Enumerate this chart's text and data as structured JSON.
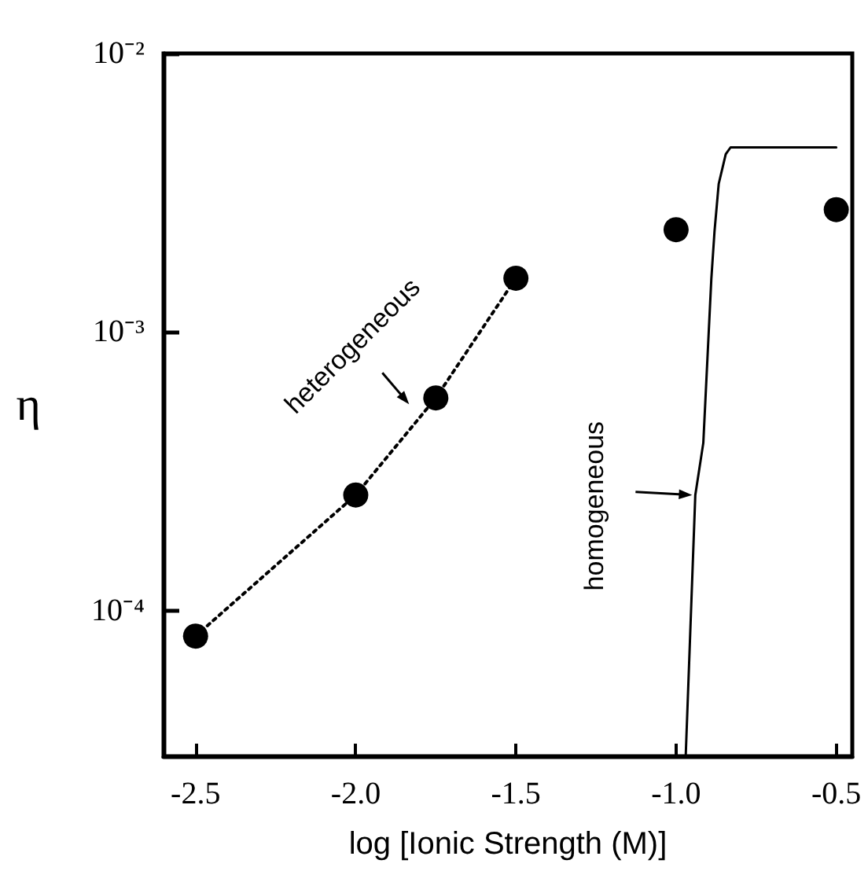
{
  "chart_data": {
    "type": "scatter",
    "xlabel": "log [Ionic Strength (M)]",
    "ylabel": "η",
    "log": "y",
    "grid": false,
    "xlim": [
      -2.6,
      -0.45
    ],
    "xticks": [
      -2.5,
      {
        "value": -2,
        "label": "-2.0"
      },
      -1.5,
      {
        "value": -1,
        "label": "-1.0"
      },
      -0.5
    ],
    "ylim": [
      3e-05,
      0.01
    ],
    "yticks": [
      {
        "value": 0.0001,
        "label": "10⁻⁴"
      },
      {
        "value": 0.001,
        "label": "10⁻³"
      },
      {
        "value": 0.01,
        "label": "10⁻²"
      }
    ],
    "series": [
      {
        "color": "#000000",
        "marker": "circle",
        "x": [
          -2.5,
          -2.0,
          -1.75,
          -1.5,
          -1.0,
          -0.5
        ],
        "values": [
          8.1e-05,
          0.00026,
          0.00058,
          0.00156,
          0.00233,
          0.00275
        ]
      },
      {
        "type": "line",
        "color": "#000000",
        "marker": "none",
        "line_style": "dotted",
        "x": [
          -2.5,
          -2.0,
          -1.75,
          -1.5
        ],
        "values": [
          8.1e-05,
          0.00026,
          0.00058,
          0.00156
        ]
      },
      {
        "type": "line",
        "color": "#000000",
        "marker": "none",
        "line_style": "solid",
        "x": [
          -0.97,
          -0.94,
          -0.915,
          -0.89,
          -0.88,
          -0.867,
          -0.845,
          -0.83,
          -0.5
        ],
        "values": [
          3e-05,
          0.00026,
          0.0004,
          0.00155,
          0.0023,
          0.0034,
          0.00435,
          0.0046,
          0.0046
        ]
      }
    ],
    "annotations": [
      {
        "text": "heterogeneous",
        "x": -1.75,
        "y": 0.00058
      },
      "homogeneous"
    ]
  }
}
